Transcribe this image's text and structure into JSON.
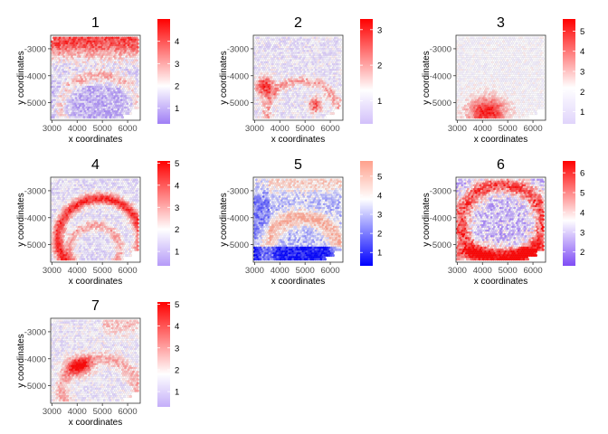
{
  "chart_data": [
    {
      "type": "scatter",
      "title": "1",
      "xlabel": "x coordinates",
      "ylabel": "y coordinates",
      "xticks": [
        "3000",
        "4000",
        "5000",
        "6000"
      ],
      "yticks": [
        "-3000",
        "-4000",
        "-5000"
      ],
      "xlim": [
        2950,
        6500
      ],
      "ylim": [
        -5650,
        -2500
      ],
      "legend": {
        "ticks": [
          "1",
          "2",
          "3",
          "4"
        ],
        "range": [
          0.3,
          5.0
        ],
        "mid": 2.0,
        "colors": {
          "low": "#9f7ef5",
          "mid": "#ffffff",
          "high": "#ff0000"
        }
      }
    },
    {
      "type": "scatter",
      "title": "2",
      "xlabel": "x coordinates",
      "ylabel": "y coordinates",
      "xticks": [
        "3000",
        "4000",
        "5000",
        "6000"
      ],
      "yticks": [
        "-3000",
        "-4000",
        "-5000"
      ],
      "xlim": [
        2950,
        6500
      ],
      "ylim": [
        -5650,
        -2500
      ],
      "legend": {
        "ticks": [
          "1",
          "2",
          "3"
        ],
        "range": [
          0.35,
          3.3
        ],
        "mid": 1.3,
        "colors": {
          "low": "#d2c0fa",
          "mid": "#ffffff",
          "high": "#ff0000"
        }
      }
    },
    {
      "type": "scatter",
      "title": "3",
      "xlabel": "x coordinates",
      "ylabel": "y coordinates",
      "xticks": [
        "3000",
        "4000",
        "5000",
        "6000"
      ],
      "yticks": [
        "-3000",
        "-4000",
        "-5000"
      ],
      "xlim": [
        2950,
        6500
      ],
      "ylim": [
        -5650,
        -2500
      ],
      "legend": {
        "ticks": [
          "1",
          "2",
          "3",
          "4",
          "5"
        ],
        "range": [
          0.4,
          5.6
        ],
        "mid": 2.2,
        "colors": {
          "low": "#e0d4fb",
          "mid": "#ffffff",
          "high": "#ff0000"
        }
      }
    },
    {
      "type": "scatter",
      "title": "4",
      "xlabel": "x coordinates",
      "ylabel": "y coordinates",
      "xticks": [
        "3000",
        "4000",
        "5000",
        "6000"
      ],
      "yticks": [
        "-3000",
        "-4000",
        "-5000"
      ],
      "xlim": [
        2950,
        6500
      ],
      "ylim": [
        -5650,
        -2500
      ],
      "legend": {
        "ticks": [
          "1",
          "2",
          "3",
          "4",
          "5"
        ],
        "range": [
          0.35,
          5.1
        ],
        "mid": 2.0,
        "colors": {
          "low": "#b59af8",
          "mid": "#ffffff",
          "high": "#ff0000"
        }
      }
    },
    {
      "type": "scatter",
      "title": "5",
      "xlabel": "x coordinates",
      "ylabel": "y coordinates",
      "xticks": [
        "3000",
        "4000",
        "5000",
        "6000"
      ],
      "yticks": [
        "-3000",
        "-4000",
        "-5000"
      ],
      "xlim": [
        2950,
        6500
      ],
      "ylim": [
        -5650,
        -2500
      ],
      "legend": {
        "ticks": [
          "1",
          "2",
          "3",
          "4",
          "5"
        ],
        "range": [
          0.3,
          5.8
        ],
        "mid": 3.8,
        "colors": {
          "low": "#0000ff",
          "mid": "#ffffff",
          "high": "#ffa08c"
        }
      }
    },
    {
      "type": "scatter",
      "title": "6",
      "xlabel": "x coordinates",
      "ylabel": "y coordinates",
      "xticks": [
        "3000",
        "4000",
        "5000",
        "6000"
      ],
      "yticks": [
        "-3000",
        "-4000",
        "-5000"
      ],
      "xlim": [
        2950,
        6500
      ],
      "ylim": [
        -5650,
        -2500
      ],
      "legend": {
        "ticks": [
          "2",
          "3",
          "4",
          "5",
          "6"
        ],
        "range": [
          1.3,
          6.6
        ],
        "mid": 3.6,
        "colors": {
          "low": "#7f4cf5",
          "mid": "#ffffff",
          "high": "#ff0000"
        }
      }
    },
    {
      "type": "scatter",
      "title": "7",
      "xlabel": "x coordinates",
      "ylabel": "y coordinates",
      "xticks": [
        "3000",
        "4000",
        "5000",
        "6000"
      ],
      "yticks": [
        "-3000",
        "-4000",
        "-5000"
      ],
      "xlim": [
        2950,
        6500
      ],
      "ylim": [
        -5650,
        -2500
      ],
      "legend": {
        "ticks": [
          "1",
          "2",
          "3",
          "4",
          "5"
        ],
        "range": [
          0.3,
          5.1
        ],
        "mid": 1.8,
        "colors": {
          "low": "#c4aef9",
          "mid": "#ffffff",
          "high": "#ff0000"
        }
      }
    }
  ]
}
